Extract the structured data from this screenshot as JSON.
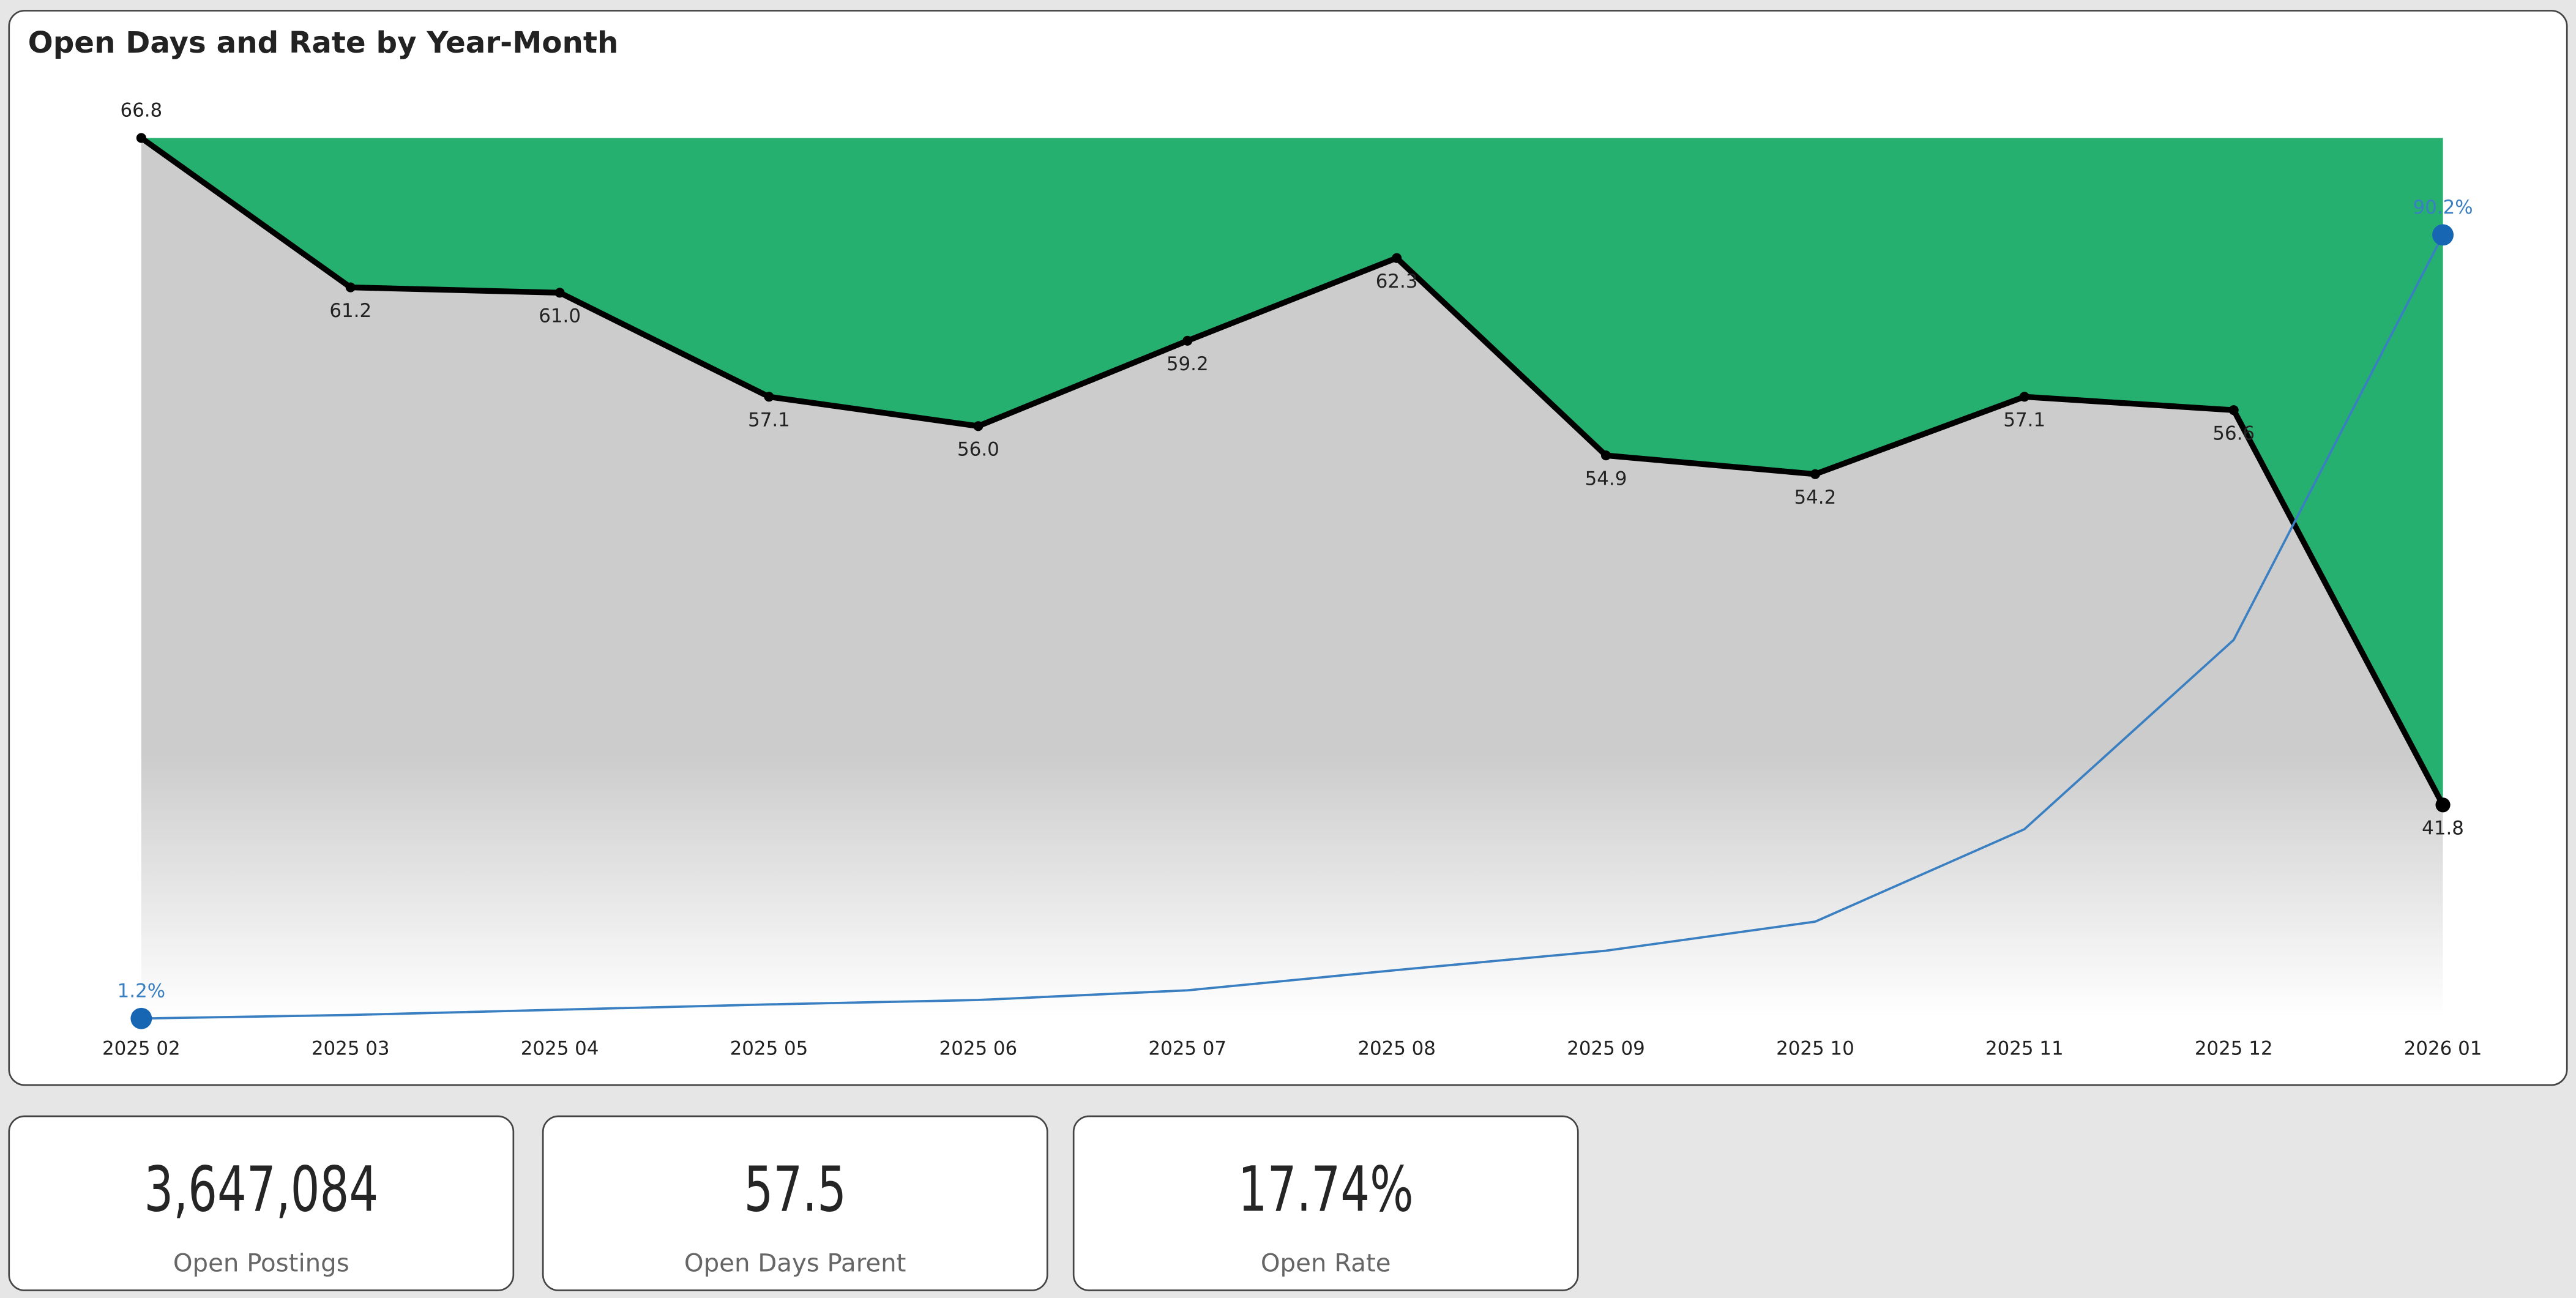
{
  "chart_data": {
    "type": "line",
    "title": "Open Days and Rate by Year-Month",
    "categories": [
      "2025 02",
      "2025 03",
      "2025 04",
      "2025 05",
      "2025 06",
      "2025 07",
      "2025 08",
      "2025 09",
      "2025 10",
      "2025 11",
      "2025 12",
      "2026 01"
    ],
    "series": [
      {
        "name": "Open Days",
        "values": [
          66.8,
          61.2,
          61.0,
          57.1,
          56.0,
          59.2,
          62.3,
          54.9,
          54.2,
          57.1,
          56.6,
          41.8
        ],
        "labels": [
          "66.8",
          "61.2",
          "61.0",
          "57.1",
          "56.0",
          "59.2",
          "62.3",
          "54.9",
          "54.2",
          "57.1",
          "56.6",
          "41.8"
        ],
        "color": "#000000"
      },
      {
        "name": "Open Rate",
        "values": [
          1.2,
          1.6,
          2.2,
          2.8,
          3.3,
          4.4,
          6.7,
          8.9,
          12.2,
          22.7,
          44.2,
          90.2
        ],
        "unit": "%",
        "labels": [
          "1.2%",
          "",
          "",
          "",
          "",
          "",
          "",
          "",
          "",
          "",
          "",
          "90.2%"
        ],
        "color": "#3a7fc1"
      }
    ],
    "fill_above_color": "#25b06f",
    "fill_below_color": "#cccccc",
    "grid": false
  },
  "kpis": [
    {
      "value": "3,647,084",
      "label": "Open Postings"
    },
    {
      "value": "57.5",
      "label": "Open Days Parent"
    },
    {
      "value": "17.74%",
      "label": "Open Rate"
    }
  ]
}
